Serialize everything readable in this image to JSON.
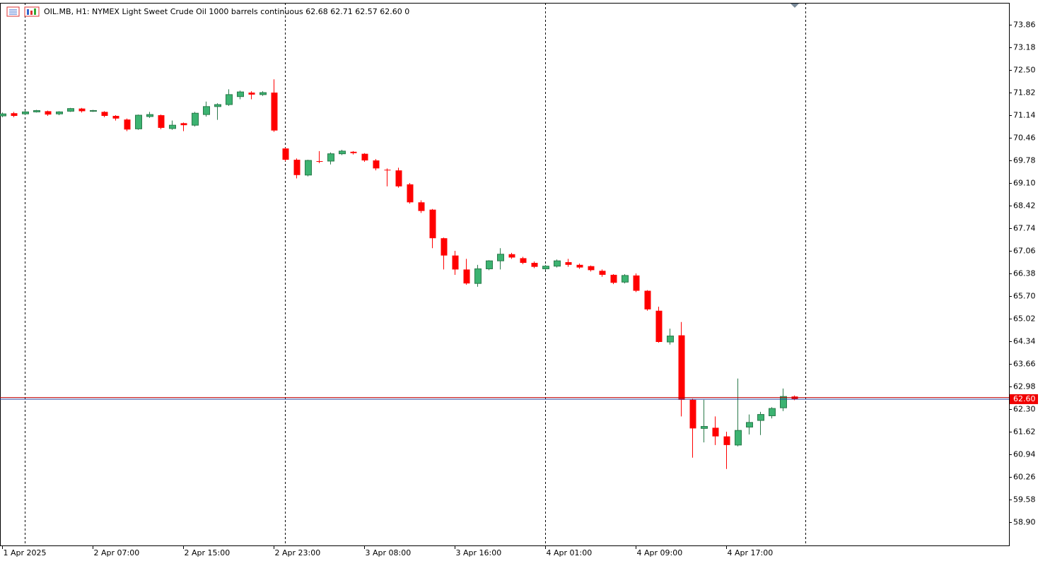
{
  "chart_data": {
    "type": "candlestick",
    "title": "OIL.MB, H1:  NYMEX Light Sweet Crude Oil 1000 barrels continuous  62.68 62.71 62.57 62.60  0",
    "categories": [
      "1 Apr 2025",
      null,
      null,
      null,
      null,
      null,
      null,
      null,
      "2 Apr 07:00",
      null,
      null,
      null,
      null,
      null,
      null,
      null,
      "2 Apr 15:00",
      null,
      null,
      null,
      null,
      null,
      null,
      null,
      "2 Apr 23:00",
      null,
      null,
      null,
      null,
      null,
      null,
      null,
      "3 Apr 08:00",
      null,
      null,
      null,
      null,
      null,
      null,
      null,
      "3 Apr 16:00",
      null,
      null,
      null,
      null,
      null,
      null,
      null,
      "4 Apr 01:00",
      null,
      null,
      null,
      null,
      null,
      null,
      null,
      "4 Apr 09:00",
      null,
      null,
      null,
      null,
      null,
      null,
      null,
      "4 Apr 17:00",
      null,
      null,
      null,
      null,
      null,
      null
    ],
    "open": [
      71.12,
      71.2,
      71.18,
      71.24,
      71.26,
      71.18,
      71.26,
      71.34,
      71.26,
      71.24,
      71.12,
      71.01,
      70.73,
      71.1,
      71.14,
      70.74,
      70.9,
      70.84,
      71.16,
      71.4,
      71.46,
      71.7,
      71.82,
      71.76,
      71.82,
      70.14,
      69.8,
      69.34,
      69.76,
      69.76,
      69.98,
      70.04,
      69.98,
      69.78,
      69.5,
      69.48,
      69.06,
      68.52,
      68.3,
      67.44,
      66.92,
      66.5,
      66.08,
      66.52,
      66.76,
      66.96,
      66.84,
      66.7,
      66.52,
      66.6,
      66.72,
      66.64,
      66.6,
      66.46,
      66.34,
      66.12,
      66.32,
      65.86,
      65.26,
      64.32,
      64.52,
      62.58,
      61.72,
      61.74,
      61.48,
      61.22,
      61.76,
      61.96,
      62.1,
      62.34,
      62.68
    ],
    "high": [
      71.22,
      71.24,
      71.28,
      71.3,
      71.28,
      71.26,
      71.36,
      71.36,
      71.3,
      71.26,
      71.14,
      71.04,
      71.16,
      71.24,
      71.16,
      70.98,
      70.92,
      71.24,
      71.55,
      71.5,
      71.92,
      71.88,
      71.86,
      71.86,
      72.22,
      70.16,
      69.84,
      69.8,
      70.06,
      70.02,
      70.1,
      70.06,
      70.0,
      69.82,
      69.54,
      69.56,
      69.1,
      68.58,
      68.32,
      67.46,
      67.06,
      66.82,
      66.64,
      66.78,
      67.14,
      67.0,
      66.88,
      66.74,
      66.64,
      66.8,
      66.82,
      66.68,
      66.62,
      66.5,
      66.36,
      66.36,
      66.38,
      65.88,
      65.38,
      64.72,
      64.92,
      62.62,
      62.58,
      62.08,
      61.62,
      63.22,
      62.14,
      62.22,
      62.36,
      62.92,
      62.71
    ],
    "low": [
      71.08,
      71.08,
      71.14,
      71.22,
      71.12,
      71.14,
      71.24,
      71.22,
      71.24,
      71.08,
      70.98,
      70.66,
      70.7,
      71.06,
      70.72,
      70.7,
      70.66,
      70.8,
      71.1,
      71.0,
      71.42,
      71.62,
      71.62,
      71.72,
      70.64,
      69.76,
      69.24,
      69.3,
      69.7,
      69.66,
      69.94,
      69.96,
      69.74,
      69.48,
      69.0,
      68.96,
      68.48,
      68.2,
      67.14,
      66.5,
      66.34,
      66.04,
      65.98,
      66.48,
      66.5,
      66.82,
      66.66,
      66.54,
      66.48,
      66.56,
      66.58,
      66.52,
      66.44,
      66.28,
      66.06,
      66.08,
      65.82,
      65.26,
      64.3,
      64.24,
      62.08,
      60.84,
      61.3,
      61.22,
      60.5,
      61.18,
      61.54,
      61.52,
      62.02,
      62.24,
      62.57
    ],
    "close": [
      71.18,
      71.12,
      71.24,
      71.28,
      71.16,
      71.24,
      71.34,
      71.26,
      71.28,
      71.12,
      71.04,
      70.71,
      71.14,
      71.16,
      70.76,
      70.84,
      70.84,
      71.2,
      71.4,
      71.46,
      71.76,
      71.84,
      71.76,
      71.82,
      70.68,
      69.8,
      69.34,
      69.78,
      69.74,
      69.98,
      70.06,
      70.0,
      69.78,
      69.54,
      69.48,
      69.0,
      68.52,
      68.26,
      67.44,
      66.92,
      66.5,
      66.08,
      66.52,
      66.76,
      66.96,
      66.86,
      66.7,
      66.58,
      66.6,
      66.76,
      66.64,
      66.56,
      66.48,
      66.34,
      66.1,
      66.32,
      65.86,
      65.3,
      64.32,
      64.5,
      62.58,
      61.72,
      61.78,
      61.48,
      61.22,
      61.66,
      61.9,
      62.14,
      62.32,
      62.68,
      62.6
    ],
    "up_color": "#3cb371",
    "up_edge": "#2a7a4b",
    "down_color": "#ff0000",
    "current_price": {
      "value": 62.6,
      "label": "62.60"
    },
    "ask_price": 62.65,
    "ylim": [
      58.2,
      74.52
    ],
    "yticks": [
      {
        "value": 73.86,
        "label": "73.86"
      },
      {
        "value": 73.18,
        "label": "73.18"
      },
      {
        "value": 72.5,
        "label": "72.50"
      },
      {
        "value": 71.82,
        "label": "71.82"
      },
      {
        "value": 71.14,
        "label": "71.14"
      },
      {
        "value": 70.46,
        "label": "70.46"
      },
      {
        "value": 69.78,
        "label": "69.78"
      },
      {
        "value": 69.1,
        "label": "69.10"
      },
      {
        "value": 68.42,
        "label": "68.42"
      },
      {
        "value": 67.74,
        "label": "67.74"
      },
      {
        "value": 67.06,
        "label": "67.06"
      },
      {
        "value": 66.38,
        "label": "66.38"
      },
      {
        "value": 65.7,
        "label": "65.70"
      },
      {
        "value": 65.02,
        "label": "65.02"
      },
      {
        "value": 64.34,
        "label": "64.34"
      },
      {
        "value": 63.66,
        "label": "63.66"
      },
      {
        "value": 62.98,
        "label": "62.98"
      },
      {
        "value": 62.3,
        "label": "62.30"
      },
      {
        "value": 61.62,
        "label": "61.62"
      },
      {
        "value": 60.94,
        "label": "60.94"
      },
      {
        "value": 60.26,
        "label": "60.26"
      },
      {
        "value": 59.58,
        "label": "59.58"
      },
      {
        "value": 58.9,
        "label": "58.90"
      }
    ]
  }
}
